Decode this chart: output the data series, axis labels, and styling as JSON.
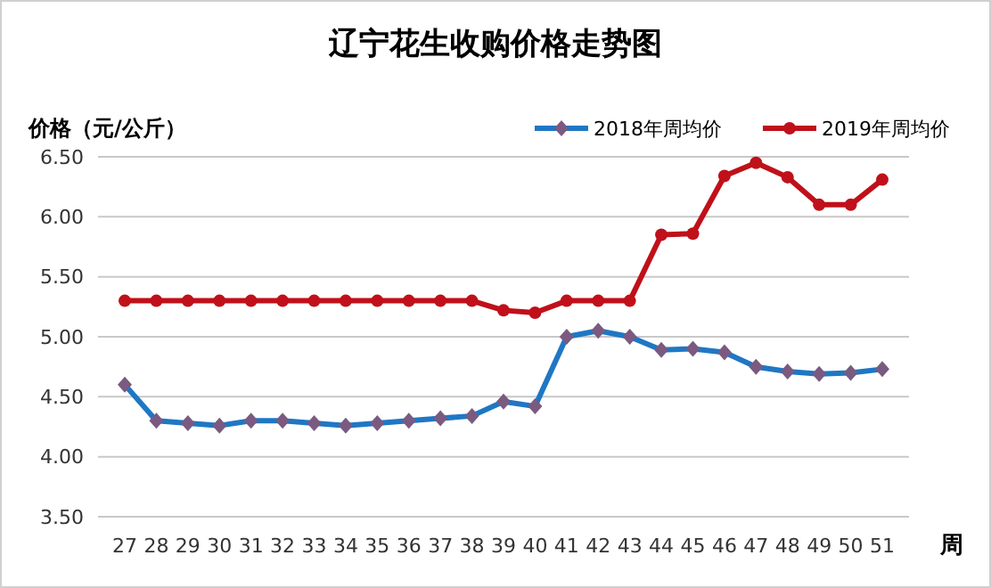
{
  "chart_data": {
    "type": "line",
    "title": "辽宁花生收购价格走势图",
    "ylabel": "价格（元/公斤）",
    "xlabel": "周",
    "categories": [
      "27",
      "28",
      "29",
      "30",
      "31",
      "32",
      "33",
      "34",
      "35",
      "36",
      "37",
      "38",
      "39",
      "40",
      "41",
      "42",
      "43",
      "44",
      "45",
      "46",
      "47",
      "48",
      "49",
      "50",
      "51"
    ],
    "series": [
      {
        "name": "2018年周均价",
        "color": "#1f77c4",
        "marker": "diamond",
        "values": [
          4.6,
          4.3,
          4.28,
          4.26,
          4.3,
          4.3,
          4.28,
          4.26,
          4.28,
          4.3,
          4.32,
          4.34,
          4.46,
          4.42,
          5.0,
          5.05,
          5.0,
          4.89,
          4.9,
          4.87,
          4.75,
          4.71,
          4.69,
          4.7,
          4.73
        ]
      },
      {
        "name": "2019年周均价",
        "color": "#c0101a",
        "marker": "circle",
        "values": [
          5.3,
          5.3,
          5.3,
          5.3,
          5.3,
          5.3,
          5.3,
          5.3,
          5.3,
          5.3,
          5.3,
          5.3,
          5.22,
          5.2,
          5.3,
          5.3,
          5.3,
          5.85,
          5.86,
          6.34,
          6.45,
          6.33,
          6.1,
          6.1,
          6.31
        ]
      }
    ],
    "ylim": [
      3.5,
      6.5
    ],
    "yticks": [
      {
        "value": 3.5,
        "label": "3.50"
      },
      {
        "value": 4,
        "label": "4.00"
      },
      {
        "value": 4.5,
        "label": "4.50"
      },
      {
        "value": 5,
        "label": "5.00"
      },
      {
        "value": 5.5,
        "label": "5.50"
      },
      {
        "value": 6,
        "label": "6.00"
      },
      {
        "value": 6.5,
        "label": "6.50"
      }
    ],
    "grid": "y",
    "legend": "top right"
  }
}
